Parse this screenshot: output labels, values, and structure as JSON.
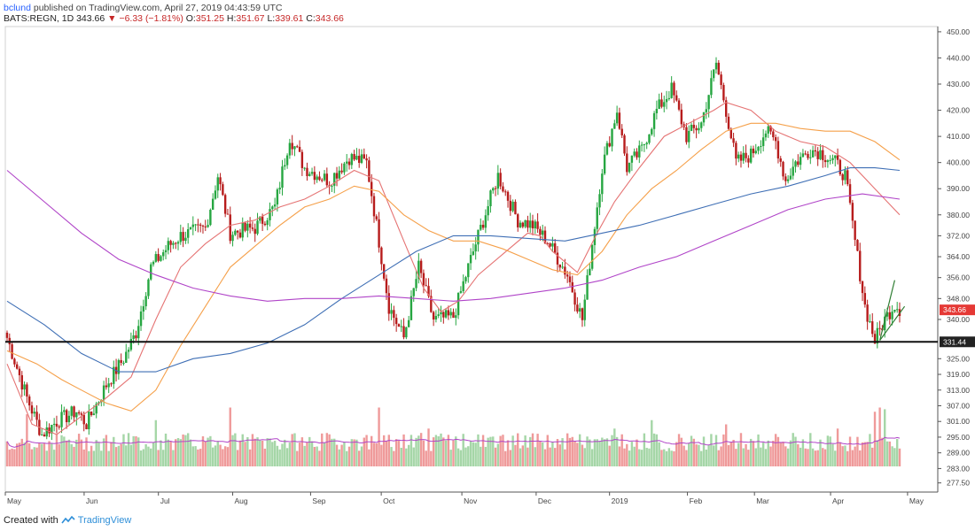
{
  "header": {
    "user": "bclund",
    "published_text": "published on TradingView.com, April 27, 2019 04:43:59 UTC",
    "symbol": "BATS:REGN, 1D",
    "last": "343.66",
    "change_arrow": "▼",
    "change": "−6.33 (−1.81%)",
    "o_label": "O:",
    "o": "351.25",
    "h_label": "H:",
    "h": "351.67",
    "l_label": "L:",
    "l": "339.61",
    "c_label": "C:",
    "c": "343.66"
  },
  "footer": {
    "created_with": "Created with",
    "brand": "TradingView"
  },
  "colors": {
    "up": "#26a641",
    "down": "#b71c1c",
    "vol_up": "#a5d6a7",
    "vol_down": "#ef9a9a",
    "ma_red": "#e57373",
    "ma_orange": "#f5a04a",
    "ma_blue": "#3f6fb5",
    "ma_purple": "#b044c8",
    "support": "#111111",
    "last_badge": "#e53935",
    "trendline": "#2e7d32"
  },
  "chart_data": {
    "type": "candlestick",
    "title": "",
    "y_axis": {
      "min": 274,
      "max": 452,
      "ticks": [
        "277.50",
        "283.00",
        "289.00",
        "295.00",
        "301.00",
        "307.00",
        "313.00",
        "319.00",
        "325.00",
        "331.44",
        "340.00",
        "348.00",
        "356.00",
        "364.00",
        "372.00",
        "380.00",
        "390.00",
        "400.00",
        "410.00",
        "420.00",
        "430.00",
        "440.00",
        "450.00"
      ]
    },
    "x_axis": {
      "labels": [
        {
          "label": "May",
          "pos": 0
        },
        {
          "label": "Jun",
          "pos": 0.087
        },
        {
          "label": "Jul",
          "pos": 0.169
        },
        {
          "label": "Aug",
          "pos": 0.251
        },
        {
          "label": "Sep",
          "pos": 0.337
        },
        {
          "label": "Oct",
          "pos": 0.415
        },
        {
          "label": "Nov",
          "pos": 0.504
        },
        {
          "label": "Dec",
          "pos": 0.586
        },
        {
          "label": "2019",
          "pos": 0.667
        },
        {
          "label": "Feb",
          "pos": 0.753
        },
        {
          "label": "Mar",
          "pos": 0.827
        },
        {
          "label": "Apr",
          "pos": 0.911
        },
        {
          "label": "May",
          "pos": 0.996
        }
      ]
    },
    "support_level": 331.44,
    "last_price": 343.66,
    "waypoints": [
      [
        0,
        333
      ],
      [
        8,
        310
      ],
      [
        14,
        296
      ],
      [
        20,
        301
      ],
      [
        28,
        305
      ],
      [
        32,
        300
      ],
      [
        40,
        315
      ],
      [
        47,
        325
      ],
      [
        52,
        335
      ],
      [
        58,
        360
      ],
      [
        65,
        368
      ],
      [
        70,
        372
      ],
      [
        80,
        375
      ],
      [
        85,
        395
      ],
      [
        90,
        373
      ],
      [
        100,
        375
      ],
      [
        108,
        383
      ],
      [
        114,
        410
      ],
      [
        120,
        398
      ],
      [
        126,
        395
      ],
      [
        130,
        393
      ],
      [
        138,
        402
      ],
      [
        145,
        400
      ],
      [
        150,
        370
      ],
      [
        154,
        345
      ],
      [
        160,
        333
      ],
      [
        166,
        360
      ],
      [
        172,
        340
      ],
      [
        180,
        341
      ],
      [
        186,
        360
      ],
      [
        190,
        372
      ],
      [
        198,
        395
      ],
      [
        206,
        378
      ],
      [
        212,
        376
      ],
      [
        218,
        370
      ],
      [
        226,
        357
      ],
      [
        232,
        340
      ],
      [
        240,
        398
      ],
      [
        246,
        420
      ],
      [
        250,
        398
      ],
      [
        256,
        405
      ],
      [
        262,
        420
      ],
      [
        268,
        428
      ],
      [
        274,
        410
      ],
      [
        280,
        415
      ],
      [
        286,
        438
      ],
      [
        290,
        420
      ],
      [
        294,
        400
      ],
      [
        300,
        403
      ],
      [
        306,
        412
      ],
      [
        310,
        408
      ],
      [
        314,
        393
      ],
      [
        318,
        400
      ],
      [
        324,
        405
      ],
      [
        328,
        404
      ],
      [
        334,
        400
      ],
      [
        338,
        395
      ],
      [
        342,
        370
      ],
      [
        346,
        345
      ],
      [
        350,
        332
      ],
      [
        354,
        340
      ],
      [
        358,
        346
      ],
      [
        360,
        344
      ]
    ],
    "moving_averages": [
      {
        "color_key": "ma_red",
        "points": [
          [
            0,
            323
          ],
          [
            10,
            300
          ],
          [
            20,
            296
          ],
          [
            30,
            303
          ],
          [
            40,
            310
          ],
          [
            50,
            318
          ],
          [
            60,
            340
          ],
          [
            70,
            360
          ],
          [
            80,
            369
          ],
          [
            90,
            376
          ],
          [
            100,
            378
          ],
          [
            110,
            383
          ],
          [
            120,
            386
          ],
          [
            130,
            391
          ],
          [
            140,
            397
          ],
          [
            150,
            393
          ],
          [
            160,
            370
          ],
          [
            168,
            352
          ],
          [
            175,
            343
          ],
          [
            182,
            347
          ],
          [
            190,
            357
          ],
          [
            200,
            365
          ],
          [
            210,
            373
          ],
          [
            215,
            372
          ],
          [
            220,
            366
          ],
          [
            230,
            358
          ],
          [
            238,
            373
          ],
          [
            245,
            385
          ],
          [
            255,
            398
          ],
          [
            265,
            410
          ],
          [
            275,
            415
          ],
          [
            285,
            420
          ],
          [
            290,
            423
          ],
          [
            300,
            420
          ],
          [
            310,
            412
          ],
          [
            320,
            408
          ],
          [
            330,
            406
          ],
          [
            340,
            400
          ],
          [
            350,
            390
          ],
          [
            360,
            380
          ]
        ]
      },
      {
        "color_key": "ma_orange",
        "points": [
          [
            0,
            328
          ],
          [
            12,
            323
          ],
          [
            22,
            317
          ],
          [
            30,
            313
          ],
          [
            40,
            308
          ],
          [
            50,
            305
          ],
          [
            60,
            313
          ],
          [
            70,
            330
          ],
          [
            80,
            345
          ],
          [
            90,
            360
          ],
          [
            100,
            368
          ],
          [
            110,
            376
          ],
          [
            120,
            383
          ],
          [
            130,
            386
          ],
          [
            140,
            391
          ],
          [
            150,
            389
          ],
          [
            160,
            380
          ],
          [
            170,
            374
          ],
          [
            180,
            370
          ],
          [
            190,
            370
          ],
          [
            200,
            367
          ],
          [
            210,
            363
          ],
          [
            220,
            359
          ],
          [
            230,
            357
          ],
          [
            240,
            366
          ],
          [
            250,
            380
          ],
          [
            260,
            390
          ],
          [
            270,
            397
          ],
          [
            280,
            405
          ],
          [
            290,
            412
          ],
          [
            300,
            415
          ],
          [
            310,
            415
          ],
          [
            320,
            413
          ],
          [
            330,
            412
          ],
          [
            340,
            412
          ],
          [
            350,
            408
          ],
          [
            360,
            401
          ]
        ]
      },
      {
        "color_key": "ma_blue",
        "points": [
          [
            0,
            347
          ],
          [
            15,
            338
          ],
          [
            30,
            327
          ],
          [
            45,
            320
          ],
          [
            60,
            320
          ],
          [
            75,
            325
          ],
          [
            90,
            327
          ],
          [
            105,
            331
          ],
          [
            120,
            338
          ],
          [
            135,
            348
          ],
          [
            150,
            357
          ],
          [
            165,
            366
          ],
          [
            180,
            372
          ],
          [
            195,
            372
          ],
          [
            210,
            371
          ],
          [
            225,
            370
          ],
          [
            240,
            373
          ],
          [
            255,
            376
          ],
          [
            270,
            380
          ],
          [
            285,
            384
          ],
          [
            300,
            388
          ],
          [
            315,
            391
          ],
          [
            330,
            395
          ],
          [
            340,
            398
          ],
          [
            350,
            398
          ],
          [
            360,
            397
          ]
        ]
      },
      {
        "color_key": "ma_purple",
        "points": [
          [
            0,
            397
          ],
          [
            15,
            385
          ],
          [
            30,
            373
          ],
          [
            45,
            363
          ],
          [
            60,
            357
          ],
          [
            75,
            352
          ],
          [
            90,
            349
          ],
          [
            105,
            347
          ],
          [
            120,
            348
          ],
          [
            135,
            348
          ],
          [
            150,
            349
          ],
          [
            165,
            348
          ],
          [
            180,
            347
          ],
          [
            195,
            348
          ],
          [
            210,
            350
          ],
          [
            225,
            352
          ],
          [
            240,
            355
          ],
          [
            255,
            360
          ],
          [
            270,
            364
          ],
          [
            285,
            370
          ],
          [
            300,
            376
          ],
          [
            315,
            382
          ],
          [
            330,
            386
          ],
          [
            345,
            388
          ],
          [
            360,
            386
          ]
        ]
      }
    ],
    "volume_ma_color_key": "ma_purple",
    "trendline": {
      "from": [
        352,
        332
      ],
      "to": [
        358,
        355
      ]
    }
  }
}
